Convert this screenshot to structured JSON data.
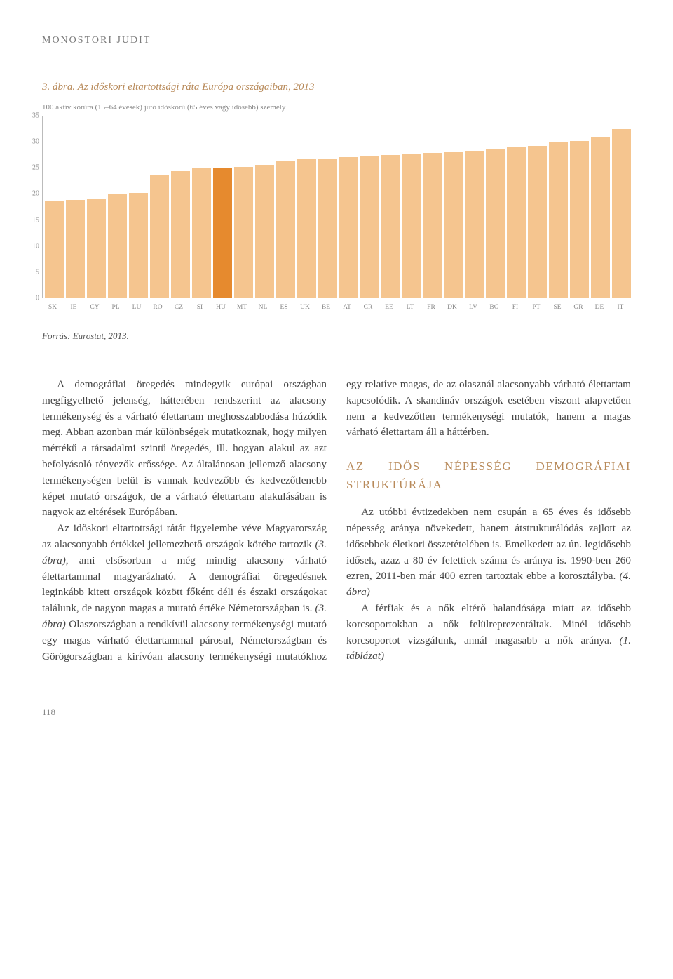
{
  "header": {
    "author": "MONOSTORI JUDIT"
  },
  "figure": {
    "title": "3. ábra. Az időskori eltartottsági ráta Európa országaiban, 2013",
    "axis_label": "100 aktív korúra (15–64 évesek) jutó időskorú (65 éves vagy idősebb) személy",
    "source": "Forrás: Eurostat, 2013.",
    "chart": {
      "type": "bar",
      "ylim": [
        0,
        35
      ],
      "ytick_step": 5,
      "yticks": [
        0,
        5,
        10,
        15,
        20,
        25,
        30,
        35
      ],
      "categories": [
        "SK",
        "IE",
        "CY",
        "PL",
        "LU",
        "RO",
        "CZ",
        "SI",
        "HU",
        "MT",
        "NL",
        "ES",
        "UK",
        "BE",
        "AT",
        "CR",
        "EE",
        "LT",
        "FR",
        "DK",
        "LV",
        "BG",
        "FI",
        "PT",
        "SE",
        "GR",
        "DE",
        "IT"
      ],
      "values": [
        18.5,
        18.8,
        19.0,
        20.0,
        20.1,
        23.5,
        24.3,
        24.8,
        24.8,
        25.1,
        25.5,
        26.2,
        26.6,
        26.8,
        27.0,
        27.2,
        27.4,
        27.6,
        27.8,
        28.0,
        28.2,
        28.7,
        29.0,
        29.2,
        29.8,
        30.2,
        31.0,
        32.5
      ],
      "bar_color": "#f5c58f",
      "highlight_color": "#e68a2e",
      "highlight_index": 8,
      "background_color": "#ffffff",
      "grid_color": "#eeeeee",
      "axis_color": "#bbbbbb",
      "tick_fontsize": 10,
      "tick_color": "#888888"
    }
  },
  "body": {
    "p1": "A demográfiai öregedés mindegyik európai országban megfigyelhető jelenség, hátterében rendszerint az alacsony termékenység és a várható élettartam meghosszabbodása húzódik meg. Abban azonban már különbségek mutatkoznak, hogy milyen mértékű a társadalmi szintű öregedés, ill. hogyan alakul az azt befolyásoló tényezők erőssége. Az általánosan jellemző alacsony termékenységen belül is vannak kedvezőbb és kedvezőtlenebb képet mutató országok, de a várható élettartam alakulásában is nagyok az eltérések Európában.",
    "p2a": "Az időskori eltartottsági rátát figyelembe véve Magyarország az alacsonyabb értékkel jellemezhető országok körébe tartozik ",
    "p2_ref": "(3. ábra)",
    "p2b": ", ami elsősorban a még mindig alacsony várható élettartammal magyarázható. A demográfiai öregedésnek leginkább kitett országok között főként déli és északi országokat találunk, de nagyon magas a mutató értéke Németországban is. ",
    "p2_ref2": "(3. ábra)",
    "p2c": " Olaszországban a rendkívül alacsony termékenységi mutató egy magas várható élettartammal párosul, Németországban és Görögországban a kirívóan alacsony termékenységi mutatókhoz egy relatíve magas, de az olasznál alacsonyabb várható élettartam kapcsolódik. A skandináv országok esetében viszont alapvetően nem a kedvezőtlen termékenységi mutatók, hanem a magas várható élettartam áll a háttérben.",
    "heading": "AZ IDŐS NÉPESSÉG DEMOGRÁFIAI STRUKTÚRÁJA",
    "p3a": "Az utóbbi évtizedekben nem csupán a 65 éves és idősebb népesség aránya növekedett, hanem átstrukturálódás zajlott az idősebbek életkori összetételében is. Emelkedett az ún. legidősebb idősek, azaz a 80 év felettiek száma és aránya is. 1990-ben 260 ezren, 2011-ben már 400 ezren tartoztak ebbe a korosztályba. ",
    "p3_ref": "(4. ábra)",
    "p4a": "A férfiak és a nők eltérő halandósága miatt az idősebb korcsoportokban a nők felülreprezentáltak. Minél idősebb korcsoportot vizsgálunk, annál magasabb a nők aránya. ",
    "p4_ref": "(1. táblázat)"
  },
  "page_number": "118"
}
